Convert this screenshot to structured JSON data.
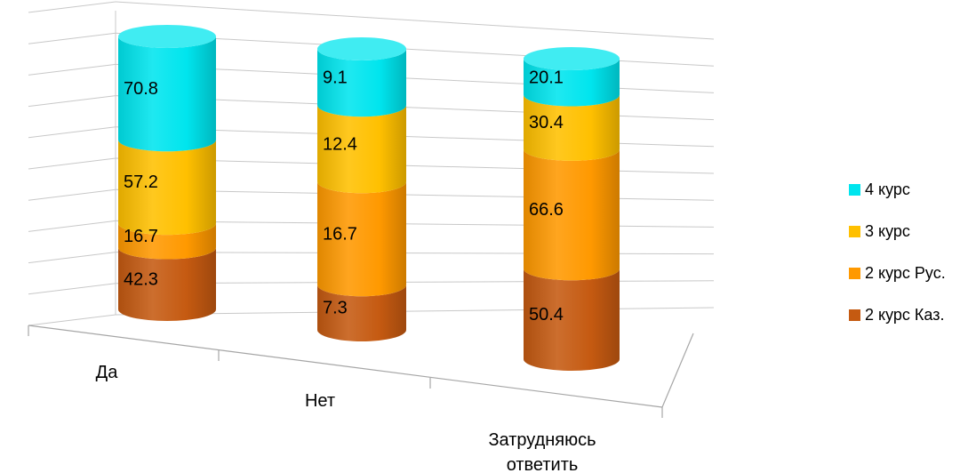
{
  "chart_data": {
    "type": "bar",
    "stacked": true,
    "style": "3d-cylinder",
    "categories": [
      "Да",
      "Нет",
      "Затрудняюсь ответить"
    ],
    "series": [
      {
        "name": "2 курс Каз.",
        "color": "#C55A11",
        "values": [
          42.3,
          7.3,
          50.4
        ]
      },
      {
        "name": "2 курс Рус.",
        "color": "#FF9900",
        "values": [
          16.7,
          16.7,
          66.6
        ]
      },
      {
        "name": "3 курс",
        "color": "#FFC000",
        "values": [
          57.2,
          12.4,
          30.4
        ]
      },
      {
        "name": "4 курс",
        "color": "#00E5EE",
        "values": [
          70.8,
          9.1,
          20.1
        ]
      }
    ],
    "legend_position": "right",
    "grid": true
  },
  "category_lines": [
    [
      "Да"
    ],
    [
      "Нет"
    ],
    [
      "Затрудняюсь",
      "ответить"
    ]
  ],
  "legend_order": [
    3,
    2,
    1,
    0
  ]
}
